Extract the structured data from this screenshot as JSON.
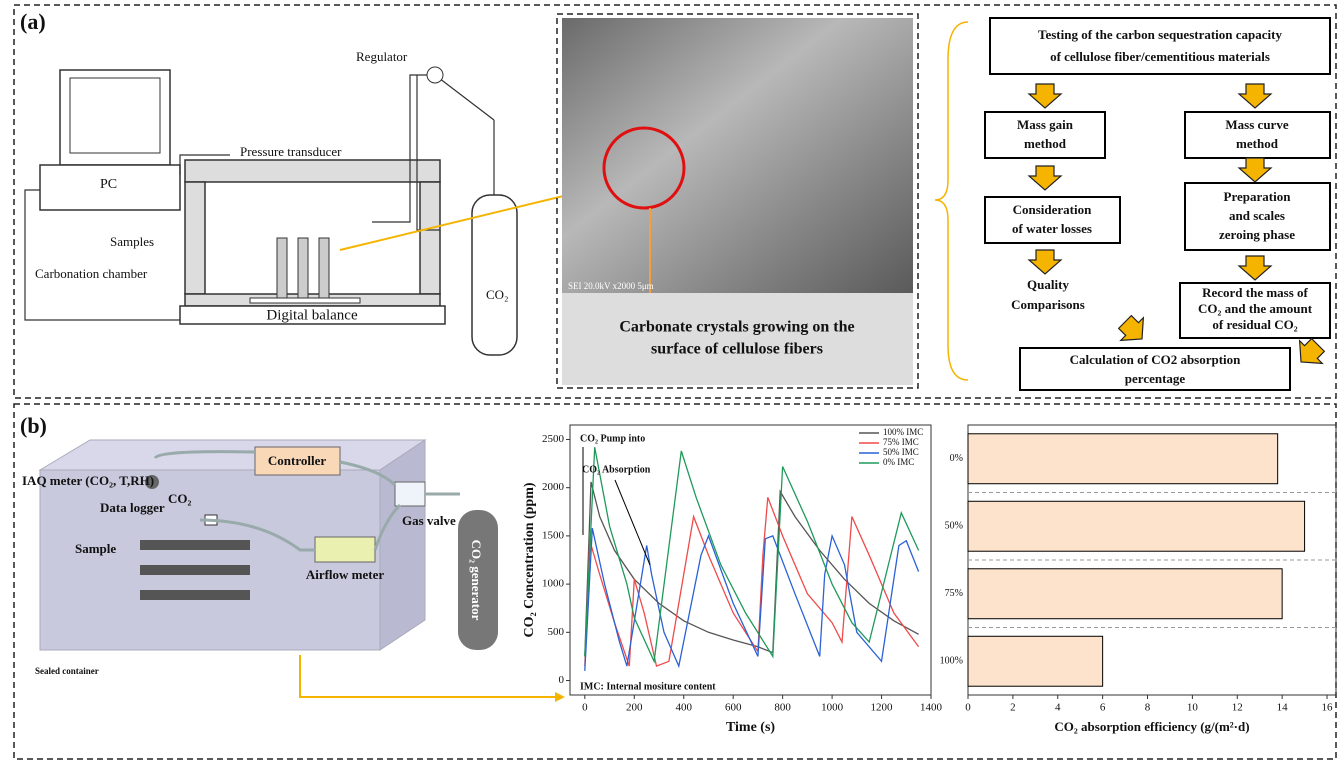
{
  "panel_a": {
    "label": "(a)",
    "setup": {
      "regulator": "Regulator",
      "pressure": "Pressure transducer",
      "pc": "PC",
      "co2": "CO₂",
      "samples": "Samples",
      "chamber": "Carbonation chamber",
      "balance": "Digital balance"
    },
    "sem": {
      "scale": "SEI 20.0kV x2000 5μm",
      "caption": [
        "Carbonate crystals growing on the",
        "surface of cellulose fibers"
      ]
    },
    "flow": {
      "top": [
        "Testing of the carbon sequestration capacity",
        "of cellulose fiber/cementitious materials"
      ],
      "left": [
        [
          "Mass gain",
          "method"
        ],
        [
          "Consideration",
          "of water losses"
        ],
        [
          "Quality",
          "Comparisons"
        ]
      ],
      "right": [
        [
          "Mass curve",
          "method"
        ],
        [
          "Preparation",
          "and scales",
          "zeroing phase"
        ],
        [
          "Record the mass of",
          "CO₂ and the amount",
          "of residual CO₂"
        ]
      ],
      "bottom": [
        "Calculation of CO2 absorption",
        "percentage"
      ]
    }
  },
  "panel_b": {
    "label": "(b)",
    "setup": {
      "iaq": "IAQ meter (CO₂, T,RH)",
      "controller": "Controller",
      "co2": "CO₂",
      "logger": "Data logger",
      "sample": "Sample",
      "valve": "Gas valve",
      "airflow": "Airflow meter",
      "generator": "CO₂ generator",
      "container": "Sealed container"
    }
  },
  "chart_data": [
    {
      "type": "line",
      "x_label": "Time (s)",
      "y_label": "CO₂ Concentration (ppm)",
      "annotations": [
        "CO₂ Pump into",
        "CO₂ Absorption",
        "IMC: Internal mositure content"
      ],
      "xlim": [
        -60,
        1400
      ],
      "xticks": [
        0,
        200,
        400,
        600,
        800,
        1000,
        1200,
        1400
      ],
      "ylim": [
        -150,
        2650
      ],
      "yticks": [
        0,
        500,
        1000,
        1500,
        2000,
        2500
      ],
      "series": [
        {
          "name": "100% IMC",
          "color": "#555555",
          "x": [
            0,
            25,
            60,
            120,
            200,
            300,
            400,
            500,
            600,
            700,
            760,
            790,
            850,
            950,
            1050,
            1150,
            1250,
            1350
          ],
          "values": [
            250,
            2060,
            1700,
            1350,
            1050,
            800,
            620,
            500,
            420,
            350,
            290,
            1960,
            1700,
            1350,
            1050,
            800,
            620,
            480
          ]
        },
        {
          "name": "75% IMC",
          "color": "#f04a4a",
          "x": [
            0,
            20,
            60,
            120,
            180,
            200,
            240,
            290,
            340,
            440,
            500,
            600,
            700,
            720,
            740,
            800,
            900,
            1000,
            1040,
            1080,
            1150,
            1250,
            1350
          ],
          "values": [
            150,
            1450,
            1100,
            600,
            150,
            1050,
            700,
            150,
            200,
            1700,
            1300,
            700,
            300,
            1300,
            1900,
            1500,
            900,
            600,
            400,
            1700,
            1300,
            700,
            350
          ]
        },
        {
          "name": "50% IMC",
          "color": "#2a62d6",
          "x": [
            0,
            30,
            80,
            140,
            170,
            250,
            270,
            320,
            380,
            470,
            500,
            600,
            700,
            730,
            760,
            850,
            950,
            970,
            1000,
            1050,
            1100,
            1200,
            1270,
            1300,
            1350
          ],
          "values": [
            100,
            1580,
            1000,
            400,
            150,
            1400,
            1100,
            500,
            150,
            1300,
            1500,
            800,
            250,
            1470,
            1500,
            900,
            250,
            1100,
            1500,
            1200,
            500,
            200,
            1400,
            1450,
            1130
          ]
        },
        {
          "name": "0% IMC",
          "color": "#1f9a5a",
          "x": [
            0,
            40,
            100,
            170,
            200,
            280,
            390,
            450,
            550,
            650,
            760,
            800,
            900,
            1000,
            1080,
            1150,
            1280,
            1350
          ],
          "values": [
            250,
            2420,
            1600,
            1000,
            650,
            200,
            2380,
            1900,
            1200,
            700,
            250,
            2220,
            1650,
            1000,
            600,
            400,
            1740,
            1350
          ]
        }
      ]
    },
    {
      "type": "hbar",
      "x_label": "CO₂ absorption efficiency (g/(m²·d)",
      "categories": [
        "0%",
        "50%",
        "75%",
        "100%"
      ],
      "values": [
        13.8,
        15,
        14,
        6
      ],
      "color": "#fde3cb",
      "xlim": [
        0,
        16.4
      ],
      "xticks": [
        0,
        2,
        4,
        6,
        8,
        10,
        12,
        14,
        16
      ],
      "grid": true
    }
  ]
}
